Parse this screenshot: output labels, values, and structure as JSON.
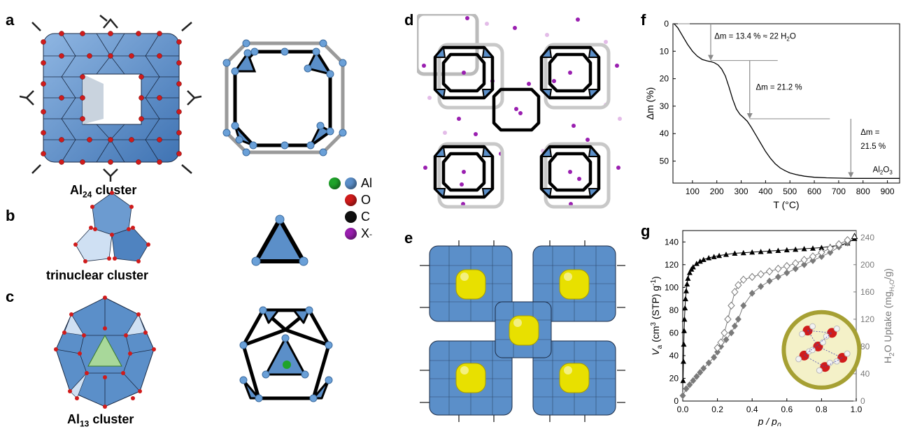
{
  "panels": {
    "a": {
      "label": "a",
      "caption": "Al",
      "caption_sub": "24",
      "caption_suffix": " cluster"
    },
    "b": {
      "label": "b",
      "caption": "trinuclear cluster"
    },
    "c": {
      "label": "c",
      "caption": "Al",
      "caption_sub": "13",
      "caption_suffix": " cluster"
    },
    "d": {
      "label": "d"
    },
    "e": {
      "label": "e"
    },
    "f": {
      "label": "f"
    },
    "g": {
      "label": "g"
    }
  },
  "legend": [
    {
      "symbol": "Al",
      "colors": [
        "#1fa32a",
        "#5b8fc9"
      ]
    },
    {
      "symbol": "O",
      "colors": [
        "#d01b1b"
      ]
    },
    {
      "symbol": "C",
      "colors": [
        "#111111"
      ]
    },
    {
      "symbol": "X",
      "superscript": "-",
      "colors": [
        "#9a1fb0"
      ]
    }
  ],
  "colors": {
    "polyhedra": "#5b8fc9",
    "oxygen": "#d01b1b",
    "anion": "#9a1fb0",
    "yellow": "#e8e000",
    "tga_curve": "#000000",
    "arrow": "#8a8a8a",
    "n2": "#000000",
    "h2o": "#7a7a7a"
  },
  "chart_data": [
    {
      "type": "line",
      "panel": "f",
      "xlabel": "T (°C)",
      "ylabel": "Δm (%)",
      "xlim": [
        20,
        950
      ],
      "ylim": [
        0,
        58
      ],
      "y_inverted": true,
      "x_ticks": [
        "100",
        "200",
        "300",
        "400",
        "500",
        "600",
        "700",
        "800",
        "900"
      ],
      "y_ticks": [
        "0",
        "10",
        "20",
        "30",
        "40",
        "50"
      ],
      "series": [
        {
          "x": [
            25,
            40,
            60,
            80,
            100,
            120,
            140,
            160,
            175,
            190,
            205,
            220,
            235,
            250,
            265,
            280,
            295,
            310,
            325,
            340,
            360,
            380,
            400,
            420,
            440,
            460,
            480,
            500,
            530,
            560,
            600,
            650,
            700,
            750,
            800,
            850,
            900,
            950
          ],
          "y": [
            0,
            1.5,
            4.5,
            7.5,
            10.0,
            11.8,
            13.0,
            13.5,
            13.8,
            14.2,
            15.0,
            16.5,
            19.0,
            23.0,
            27.5,
            31.0,
            33.0,
            34.2,
            35.5,
            37.5,
            40.5,
            43.5,
            46.5,
            49.0,
            51.0,
            52.5,
            53.5,
            54.3,
            55.0,
            55.5,
            55.9,
            56.1,
            56.2,
            56.3,
            56.3,
            56.3,
            56.3,
            56.3
          ]
        }
      ],
      "annotations": [
        {
          "text": "Δm = 13.4 % ≈ 22 H",
          "sub": "2",
          "tail": "O",
          "x": 175,
          "y_from": 0,
          "y_to": 13.4
        },
        {
          "text": "Δm = 21.2 %",
          "x": 335,
          "y_from": 13.4,
          "y_to": 34.6
        },
        {
          "text": "Δm =",
          "text2": "21.5 %",
          "x": 750,
          "y_from": 34.6,
          "y_to": 56.1
        },
        {
          "text": "Al",
          "sub": "2",
          "tail": "O",
          "sub2": "3"
        }
      ]
    },
    {
      "type": "scatter",
      "panel": "g",
      "xlabel": "p / p",
      "xlabel_sub": "0",
      "ylabel": "V",
      "ylabel_sub": "a",
      "ylabel_rest": " (cm",
      "ylabel_sup": "3",
      "ylabel_tail": " (STP) g",
      "ylabel_sup2": "-1",
      "ylabel_end": ")",
      "y2label": "H",
      "y2label_sub": "2",
      "y2label_mid": "O Uptake (mg",
      "y2label_sub2": "H₂O",
      "y2label_end": "/g)",
      "xlim": [
        0,
        1.0
      ],
      "ylim": [
        0,
        150
      ],
      "y2lim": [
        0,
        250
      ],
      "x_ticks": [
        "0.0",
        "0.2",
        "0.4",
        "0.6",
        "0.8",
        "1.0"
      ],
      "y_ticks": [
        "0",
        "20",
        "40",
        "60",
        "80",
        "100",
        "120",
        "140"
      ],
      "y2_ticks": [
        "0",
        "40",
        "80",
        "120",
        "160",
        "200",
        "240"
      ],
      "series": [
        {
          "name": "N2 adsorption",
          "axis": "left",
          "marker": "triangle-filled",
          "x": [
            0.002,
            0.004,
            0.006,
            0.008,
            0.01,
            0.013,
            0.016,
            0.02,
            0.025,
            0.03,
            0.04,
            0.05,
            0.06,
            0.08,
            0.1,
            0.12,
            0.15,
            0.18,
            0.21,
            0.25,
            0.3,
            0.35,
            0.4,
            0.45,
            0.5,
            0.55,
            0.6,
            0.65,
            0.7,
            0.75,
            0.8,
            0.85,
            0.9,
            0.95,
            0.99
          ],
          "y": [
            18,
            35,
            50,
            62,
            72,
            82,
            90,
            97,
            103,
            108,
            113,
            116,
            118,
            121,
            123,
            124.5,
            126,
            127,
            128,
            129,
            130,
            130.5,
            131,
            131.5,
            132,
            132.5,
            133,
            133.5,
            134,
            134.5,
            135,
            136,
            137,
            139,
            143
          ]
        },
        {
          "name": "N2 desorption",
          "axis": "left",
          "marker": "triangle-open",
          "x": [
            0.99
          ],
          "y": [
            145
          ]
        },
        {
          "name": "H2O adsorption",
          "axis": "right",
          "marker": "diamond-filled",
          "x": [
            0.0,
            0.02,
            0.04,
            0.06,
            0.08,
            0.1,
            0.12,
            0.15,
            0.18,
            0.2,
            0.22,
            0.25,
            0.28,
            0.3,
            0.32,
            0.35,
            0.4,
            0.45,
            0.5,
            0.55,
            0.6,
            0.65,
            0.7,
            0.75,
            0.8,
            0.85,
            0.9,
            0.95
          ],
          "y": [
            8,
            18,
            24,
            30,
            36,
            42,
            48,
            56,
            64,
            72,
            80,
            90,
            100,
            110,
            120,
            140,
            158,
            168,
            176,
            182,
            188,
            194,
            200,
            206,
            212,
            218,
            226,
            232
          ]
        },
        {
          "name": "H2O desorption",
          "axis": "right",
          "marker": "diamond-open",
          "x": [
            0.95,
            0.9,
            0.85,
            0.8,
            0.75,
            0.7,
            0.65,
            0.6,
            0.55,
            0.5,
            0.45,
            0.4,
            0.35,
            0.32,
            0.3,
            0.28,
            0.26,
            0.24,
            0.22,
            0.2
          ],
          "y": [
            236,
            230,
            224,
            218,
            212,
            207,
            202,
            198,
            194,
            190,
            186,
            182,
            178,
            170,
            160,
            140,
            120,
            100,
            86,
            78
          ]
        }
      ]
    }
  ]
}
